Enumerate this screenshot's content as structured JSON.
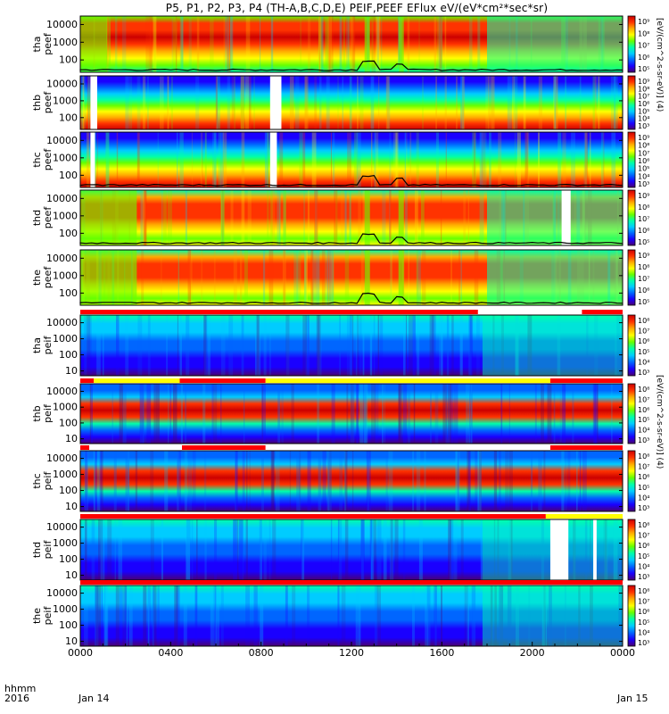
{
  "title": "P5, P1, P2, P3, P4 (TH-A,B,C,D,E) PEIF,PEEF EFlux eV/(eV*cm²*sec*sr)",
  "colorbar_unit_top": "[eV/(cm^2-s-sr-eV)] (4)",
  "colorbar_unit_bottom": "[eV/(cm^2-s-sr-eV)] (4)",
  "x_axis": {
    "line1_label": "hhmm",
    "line2_label": "2016",
    "start_date": "Jan 14",
    "end_date": "Jan 15",
    "ticks": [
      "0000",
      "0400",
      "0800",
      "1200",
      "1600",
      "2000",
      "0000"
    ]
  },
  "colors": {
    "spectrum": [
      "#4b0070",
      "#1a00ff",
      "#0066ff",
      "#00ccff",
      "#00ffaa",
      "#66ff00",
      "#ffff00",
      "#ffaa00",
      "#ff3300",
      "#cc0000"
    ],
    "flag_red": "#ff0000",
    "flag_yellow": "#ffff00",
    "gap": "#ffffff"
  },
  "chart_data": {
    "type": "heatmap",
    "description_x": "time (hours of UT, 2016 Jan 14 to Jan 15)",
    "xlim": [
      0,
      24
    ],
    "y_scale": "log",
    "panels": [
      {
        "label1": "tha",
        "label2": "peef",
        "y_ticks": [
          "10000",
          "1000",
          "100"
        ],
        "ylim": [
          20,
          30000
        ],
        "cbar_ticks": [
          "10⁹",
          "10⁸",
          "10⁷",
          "10⁶",
          "10⁵"
        ],
        "profile": "sheath",
        "gaps": [],
        "flags": [],
        "overlay": true
      },
      {
        "label1": "thb",
        "label2": "peef",
        "y_ticks": [
          "10000",
          "1000",
          "100"
        ],
        "ylim": [
          20,
          30000
        ],
        "cbar_ticks": [
          "10⁹",
          "10⁸",
          "10⁷",
          "10⁶",
          "10⁵",
          "10⁴",
          "10³"
        ],
        "profile": "solarwind",
        "gaps": [
          [
            0.45,
            0.75
          ],
          [
            8.4,
            8.9
          ]
        ],
        "flags": [],
        "overlay": false
      },
      {
        "label1": "thc",
        "label2": "peef",
        "y_ticks": [
          "10000",
          "1000",
          "100"
        ],
        "ylim": [
          20,
          30000
        ],
        "cbar_ticks": [
          "10⁹",
          "10⁸",
          "10⁷",
          "10⁶",
          "10⁵",
          "10⁴",
          "10³"
        ],
        "profile": "solarwind",
        "gaps": [
          [
            0.45,
            0.65
          ],
          [
            8.4,
            8.7
          ]
        ],
        "flags": [],
        "overlay": true
      },
      {
        "label1": "thd",
        "label2": "peef",
        "y_ticks": [
          "10000",
          "1000",
          "100"
        ],
        "ylim": [
          20,
          30000
        ],
        "cbar_ticks": [
          "10⁹",
          "10⁸",
          "10⁷",
          "10⁶",
          "10⁵"
        ],
        "profile": "sheath_b",
        "gaps": [
          [
            21.3,
            21.7
          ]
        ],
        "flags": [],
        "overlay": true
      },
      {
        "label1": "the",
        "label2": "peef",
        "y_ticks": [
          "10000",
          "1000",
          "100"
        ],
        "ylim": [
          20,
          30000
        ],
        "cbar_ticks": [
          "10⁹",
          "10⁸",
          "10⁷",
          "10⁶",
          "10⁵"
        ],
        "profile": "sheath_b",
        "gaps": [],
        "flags": [],
        "overlay": true
      },
      {
        "label1": "tha",
        "label2": "peif",
        "y_ticks": [
          "10000",
          "1000",
          "100",
          "10"
        ],
        "ylim": [
          5,
          30000
        ],
        "cbar_ticks": [
          "10⁸",
          "10⁷",
          "10⁶",
          "10⁵",
          "10⁴",
          "10³"
        ],
        "profile": "ion_sheath",
        "gaps": [],
        "flags": [
          {
            "from": 0,
            "to": 17.6,
            "color": "red"
          },
          {
            "from": 17.6,
            "to": 22.2,
            "color": "white"
          },
          {
            "from": 22.2,
            "to": 24,
            "color": "red"
          }
        ],
        "overlay": false
      },
      {
        "label1": "thb",
        "label2": "peif",
        "y_ticks": [
          "10000",
          "1000",
          "100",
          "10"
        ],
        "ylim": [
          5,
          30000
        ],
        "cbar_ticks": [
          "10⁸",
          "10⁷",
          "10⁶",
          "10⁵",
          "10⁴",
          "10³"
        ],
        "profile": "ion_sw",
        "gaps": [],
        "flags": [
          {
            "from": 0,
            "to": 0.6,
            "color": "red"
          },
          {
            "from": 0.6,
            "to": 4.4,
            "color": "yellow"
          },
          {
            "from": 4.4,
            "to": 8.2,
            "color": "red"
          },
          {
            "from": 8.2,
            "to": 20.8,
            "color": "yellow"
          },
          {
            "from": 20.8,
            "to": 24,
            "color": "red"
          }
        ],
        "overlay": false
      },
      {
        "label1": "thc",
        "label2": "peif",
        "y_ticks": [
          "10000",
          "1000",
          "100",
          "10"
        ],
        "ylim": [
          5,
          30000
        ],
        "cbar_ticks": [
          "10⁸",
          "10⁷",
          "10⁶",
          "10⁵",
          "10⁴",
          "10³"
        ],
        "profile": "ion_sw",
        "gaps": [],
        "flags": [
          {
            "from": 0,
            "to": 0.4,
            "color": "red"
          },
          {
            "from": 0.4,
            "to": 4.5,
            "color": "white"
          },
          {
            "from": 4.5,
            "to": 8.2,
            "color": "red"
          },
          {
            "from": 8.2,
            "to": 20.8,
            "color": "white"
          },
          {
            "from": 20.8,
            "to": 24,
            "color": "red"
          }
        ],
        "overlay": false
      },
      {
        "label1": "thd",
        "label2": "peif",
        "y_ticks": [
          "10000",
          "1000",
          "100",
          "10"
        ],
        "ylim": [
          5,
          30000
        ],
        "cbar_ticks": [
          "10⁸",
          "10⁷",
          "10⁶",
          "10⁵",
          "10⁴",
          "10³"
        ],
        "profile": "ion_sheath",
        "gaps": [
          [
            20.8,
            21.6
          ],
          [
            22.7,
            22.85
          ]
        ],
        "flags": [
          {
            "from": 0,
            "to": 20.6,
            "color": "red"
          },
          {
            "from": 20.6,
            "to": 24,
            "color": "yellow"
          }
        ],
        "overlay": false
      },
      {
        "label1": "the",
        "label2": "peif",
        "y_ticks": [
          "10000",
          "1000",
          "100",
          "10"
        ],
        "ylim": [
          5,
          30000
        ],
        "cbar_ticks": [
          "10⁸",
          "10⁷",
          "10⁶",
          "10⁵",
          "10⁴",
          "10³"
        ],
        "profile": "ion_sheath",
        "gaps": [],
        "flags": [
          {
            "from": 0,
            "to": 24,
            "color": "red"
          }
        ],
        "overlay": false
      }
    ]
  }
}
